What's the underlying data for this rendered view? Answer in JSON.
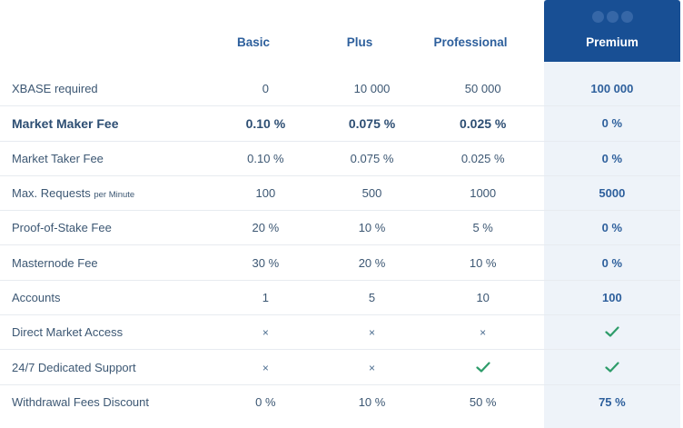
{
  "columns": [
    "Basic",
    "Plus",
    "Professional",
    "Premium"
  ],
  "rows": [
    {
      "label": "XBASE required",
      "values": [
        "0",
        "10 000",
        "50 000",
        "100 000"
      ]
    },
    {
      "label": "Market Maker Fee",
      "values": [
        "0.10 %",
        "0.075 %",
        "0.025 %",
        "0 %"
      ]
    },
    {
      "label": "Market Taker Fee",
      "values": [
        "0.10 %",
        "0.075 %",
        "0.025 %",
        "0 %"
      ]
    },
    {
      "label": "Max. Requests",
      "label_suffix": "per Minute",
      "values": [
        "100",
        "500",
        "1000",
        "5000"
      ]
    },
    {
      "label": "Proof-of-Stake Fee",
      "values": [
        "20 %",
        "10 %",
        "5 %",
        "0 %"
      ]
    },
    {
      "label": "Masternode Fee",
      "values": [
        "30 %",
        "20 %",
        "10 %",
        "0 %"
      ]
    },
    {
      "label": "Accounts",
      "values": [
        "1",
        "5",
        "10",
        "100"
      ]
    },
    {
      "label": "Direct Market Access",
      "values": [
        "×",
        "×",
        "×",
        "check"
      ]
    },
    {
      "label": "24/7 Dedicated Support",
      "values": [
        "×",
        "×",
        "check",
        "check"
      ]
    },
    {
      "label": "Withdrawal Fees Discount",
      "values": [
        "0 %",
        "10 %",
        "50 %",
        "75 %"
      ]
    }
  ],
  "colors": {
    "premium_header": "#184f94",
    "premium_column": "#eef3f9",
    "header_text": "#2d5f9c",
    "check": "#2e9c6a"
  },
  "icons": {
    "included": "check-icon",
    "not_included": "cross-icon"
  }
}
